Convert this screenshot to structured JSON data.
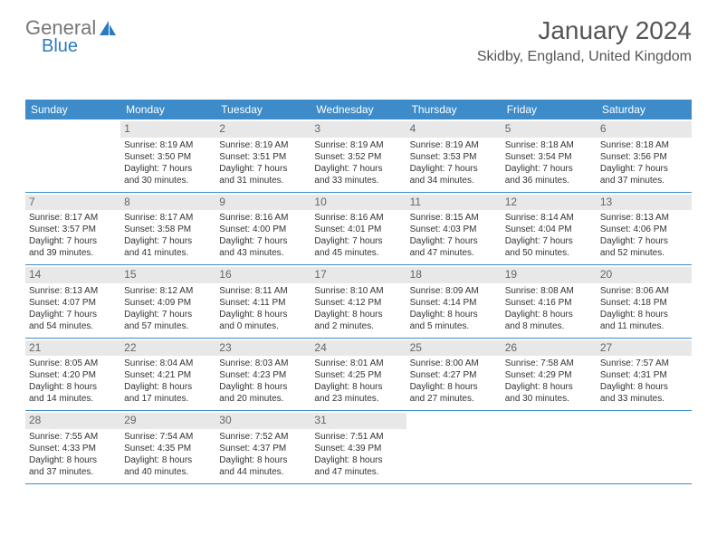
{
  "logo": {
    "text1": "General",
    "text2": "Blue"
  },
  "header": {
    "month": "January 2024",
    "location": "Skidby, England, United Kingdom"
  },
  "colors": {
    "header_bg": "#3d8cc9",
    "header_text": "#ffffff",
    "num_bg": "#e8e8e8",
    "border": "#3d8cc9"
  },
  "day_names": [
    "Sunday",
    "Monday",
    "Tuesday",
    "Wednesday",
    "Thursday",
    "Friday",
    "Saturday"
  ],
  "weeks": [
    [
      null,
      {
        "n": "1",
        "sr": "8:19 AM",
        "ss": "3:50 PM",
        "dl": "7 hours and 30 minutes."
      },
      {
        "n": "2",
        "sr": "8:19 AM",
        "ss": "3:51 PM",
        "dl": "7 hours and 31 minutes."
      },
      {
        "n": "3",
        "sr": "8:19 AM",
        "ss": "3:52 PM",
        "dl": "7 hours and 33 minutes."
      },
      {
        "n": "4",
        "sr": "8:19 AM",
        "ss": "3:53 PM",
        "dl": "7 hours and 34 minutes."
      },
      {
        "n": "5",
        "sr": "8:18 AM",
        "ss": "3:54 PM",
        "dl": "7 hours and 36 minutes."
      },
      {
        "n": "6",
        "sr": "8:18 AM",
        "ss": "3:56 PM",
        "dl": "7 hours and 37 minutes."
      }
    ],
    [
      {
        "n": "7",
        "sr": "8:17 AM",
        "ss": "3:57 PM",
        "dl": "7 hours and 39 minutes."
      },
      {
        "n": "8",
        "sr": "8:17 AM",
        "ss": "3:58 PM",
        "dl": "7 hours and 41 minutes."
      },
      {
        "n": "9",
        "sr": "8:16 AM",
        "ss": "4:00 PM",
        "dl": "7 hours and 43 minutes."
      },
      {
        "n": "10",
        "sr": "8:16 AM",
        "ss": "4:01 PM",
        "dl": "7 hours and 45 minutes."
      },
      {
        "n": "11",
        "sr": "8:15 AM",
        "ss": "4:03 PM",
        "dl": "7 hours and 47 minutes."
      },
      {
        "n": "12",
        "sr": "8:14 AM",
        "ss": "4:04 PM",
        "dl": "7 hours and 50 minutes."
      },
      {
        "n": "13",
        "sr": "8:13 AM",
        "ss": "4:06 PM",
        "dl": "7 hours and 52 minutes."
      }
    ],
    [
      {
        "n": "14",
        "sr": "8:13 AM",
        "ss": "4:07 PM",
        "dl": "7 hours and 54 minutes."
      },
      {
        "n": "15",
        "sr": "8:12 AM",
        "ss": "4:09 PM",
        "dl": "7 hours and 57 minutes."
      },
      {
        "n": "16",
        "sr": "8:11 AM",
        "ss": "4:11 PM",
        "dl": "8 hours and 0 minutes."
      },
      {
        "n": "17",
        "sr": "8:10 AM",
        "ss": "4:12 PM",
        "dl": "8 hours and 2 minutes."
      },
      {
        "n": "18",
        "sr": "8:09 AM",
        "ss": "4:14 PM",
        "dl": "8 hours and 5 minutes."
      },
      {
        "n": "19",
        "sr": "8:08 AM",
        "ss": "4:16 PM",
        "dl": "8 hours and 8 minutes."
      },
      {
        "n": "20",
        "sr": "8:06 AM",
        "ss": "4:18 PM",
        "dl": "8 hours and 11 minutes."
      }
    ],
    [
      {
        "n": "21",
        "sr": "8:05 AM",
        "ss": "4:20 PM",
        "dl": "8 hours and 14 minutes."
      },
      {
        "n": "22",
        "sr": "8:04 AM",
        "ss": "4:21 PM",
        "dl": "8 hours and 17 minutes."
      },
      {
        "n": "23",
        "sr": "8:03 AM",
        "ss": "4:23 PM",
        "dl": "8 hours and 20 minutes."
      },
      {
        "n": "24",
        "sr": "8:01 AM",
        "ss": "4:25 PM",
        "dl": "8 hours and 23 minutes."
      },
      {
        "n": "25",
        "sr": "8:00 AM",
        "ss": "4:27 PM",
        "dl": "8 hours and 27 minutes."
      },
      {
        "n": "26",
        "sr": "7:58 AM",
        "ss": "4:29 PM",
        "dl": "8 hours and 30 minutes."
      },
      {
        "n": "27",
        "sr": "7:57 AM",
        "ss": "4:31 PM",
        "dl": "8 hours and 33 minutes."
      }
    ],
    [
      {
        "n": "28",
        "sr": "7:55 AM",
        "ss": "4:33 PM",
        "dl": "8 hours and 37 minutes."
      },
      {
        "n": "29",
        "sr": "7:54 AM",
        "ss": "4:35 PM",
        "dl": "8 hours and 40 minutes."
      },
      {
        "n": "30",
        "sr": "7:52 AM",
        "ss": "4:37 PM",
        "dl": "8 hours and 44 minutes."
      },
      {
        "n": "31",
        "sr": "7:51 AM",
        "ss": "4:39 PM",
        "dl": "8 hours and 47 minutes."
      },
      null,
      null,
      null
    ]
  ],
  "labels": {
    "sunrise": "Sunrise:",
    "sunset": "Sunset:",
    "daylight": "Daylight:"
  }
}
